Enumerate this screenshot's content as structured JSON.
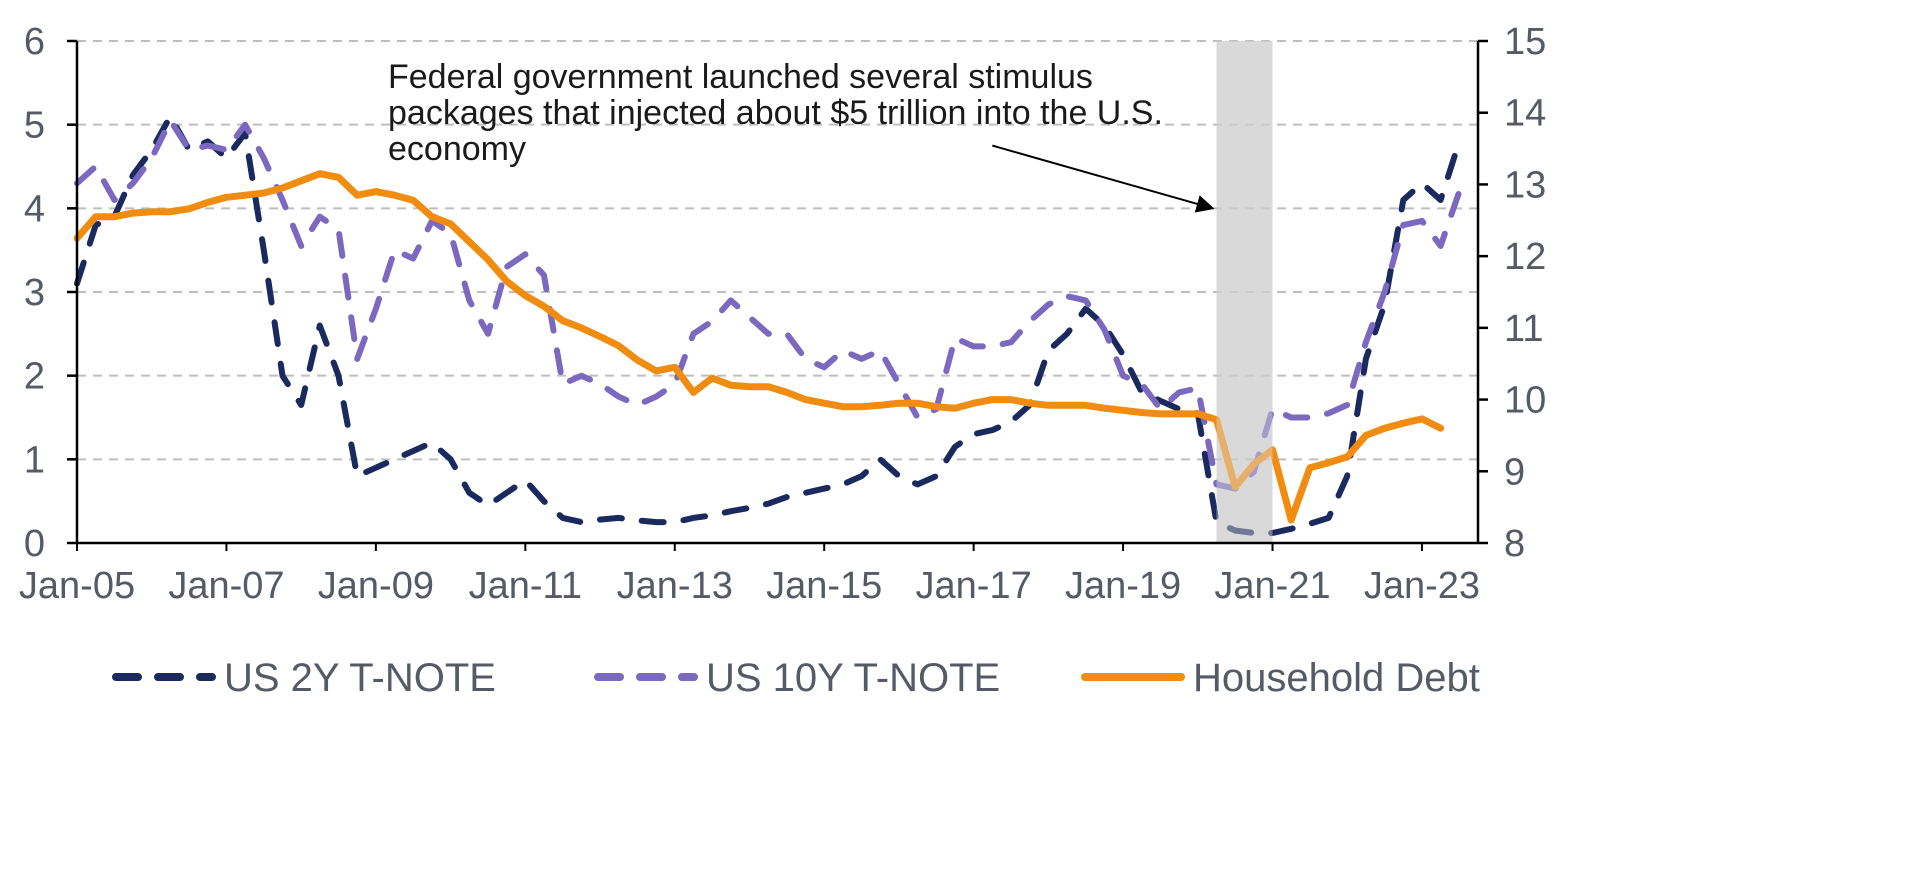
{
  "chart_data": {
    "type": "line",
    "title": "",
    "xlabel": "",
    "ylabel": "",
    "x_ticks": [
      "Jan-05",
      "Jan-07",
      "Jan-09",
      "Jan-11",
      "Jan-13",
      "Jan-15",
      "Jan-17",
      "Jan-19",
      "Jan-21",
      "Jan-23"
    ],
    "x_range": [
      2005.0,
      2023.75
    ],
    "y_left": {
      "range": [
        0,
        6
      ],
      "ticks": [
        "0",
        "1",
        "2",
        "3",
        "4",
        "5",
        "6"
      ]
    },
    "y_right": {
      "range": [
        8,
        15
      ],
      "ticks": [
        "8",
        "9",
        "10",
        "11",
        "12",
        "13",
        "14",
        "15"
      ]
    },
    "grid": "horizontal dashed",
    "legend_position": "bottom",
    "shaded_period": [
      2020.25,
      2021.0
    ],
    "annotation": {
      "lines": [
        "Federal government launched several stimulus",
        "packages that injected about $5 trillion into the U.S.",
        "economy"
      ],
      "arrow_from": [
        2017.25,
        4.75
      ],
      "arrow_to": [
        2020.2,
        4.0
      ]
    },
    "colors": {
      "us2y": "#1a2a5e",
      "us10y": "#7b68bf",
      "household": "#f08c10",
      "shade": "#d9d9d9",
      "grid": "#bfbfbf",
      "axis": "#000000"
    },
    "series": [
      {
        "name": "US 2Y T-NOTE",
        "axis": "left",
        "style": "dashed",
        "x": [
          2005.0,
          2005.25,
          2005.5,
          2005.75,
          2006.0,
          2006.25,
          2006.5,
          2006.75,
          2007.0,
          2007.25,
          2007.5,
          2007.75,
          2008.0,
          2008.25,
          2008.5,
          2008.75,
          2009.0,
          2009.25,
          2009.5,
          2009.75,
          2010.0,
          2010.25,
          2010.5,
          2010.75,
          2011.0,
          2011.25,
          2011.5,
          2011.75,
          2012.0,
          2012.25,
          2012.5,
          2012.75,
          2013.0,
          2013.25,
          2013.5,
          2013.75,
          2014.0,
          2014.25,
          2014.5,
          2014.75,
          2015.0,
          2015.25,
          2015.5,
          2015.75,
          2016.0,
          2016.25,
          2016.5,
          2016.75,
          2017.0,
          2017.25,
          2017.5,
          2017.75,
          2018.0,
          2018.25,
          2018.5,
          2018.75,
          2019.0,
          2019.25,
          2019.5,
          2019.75,
          2020.0,
          2020.25,
          2020.5,
          2020.75,
          2021.0,
          2021.25,
          2021.5,
          2021.75,
          2022.0,
          2022.25,
          2022.5,
          2022.75,
          2023.0,
          2023.25,
          2023.5
        ],
        "values": [
          3.1,
          3.8,
          3.9,
          4.4,
          4.7,
          5.1,
          4.7,
          4.8,
          4.6,
          4.9,
          3.5,
          2.0,
          1.65,
          2.6,
          2.0,
          0.8,
          0.9,
          1.0,
          1.1,
          1.2,
          1.0,
          0.6,
          0.45,
          0.6,
          0.75,
          0.5,
          0.3,
          0.25,
          0.28,
          0.3,
          0.27,
          0.25,
          0.25,
          0.3,
          0.33,
          0.38,
          0.42,
          0.47,
          0.55,
          0.6,
          0.65,
          0.7,
          0.8,
          1.0,
          0.8,
          0.7,
          0.8,
          1.15,
          1.3,
          1.35,
          1.45,
          1.65,
          2.3,
          2.5,
          2.8,
          2.6,
          2.25,
          1.8,
          1.7,
          1.6,
          1.55,
          0.25,
          0.15,
          0.12,
          0.12,
          0.17,
          0.23,
          0.3,
          0.8,
          2.2,
          2.85,
          4.1,
          4.3,
          4.1,
          4.8
        ]
      },
      {
        "name": "US 10Y T-NOTE",
        "axis": "left",
        "style": "dashed",
        "x": [
          2005.0,
          2005.25,
          2005.5,
          2005.75,
          2006.0,
          2006.25,
          2006.5,
          2006.75,
          2007.0,
          2007.25,
          2007.5,
          2007.75,
          2008.0,
          2008.25,
          2008.5,
          2008.75,
          2009.0,
          2009.25,
          2009.5,
          2009.75,
          2010.0,
          2010.25,
          2010.5,
          2010.75,
          2011.0,
          2011.25,
          2011.5,
          2011.75,
          2012.0,
          2012.25,
          2012.5,
          2012.75,
          2013.0,
          2013.25,
          2013.5,
          2013.75,
          2014.0,
          2014.25,
          2014.5,
          2014.75,
          2015.0,
          2015.25,
          2015.5,
          2015.75,
          2016.0,
          2016.25,
          2016.5,
          2016.75,
          2017.0,
          2017.25,
          2017.5,
          2017.75,
          2018.0,
          2018.25,
          2018.5,
          2018.75,
          2019.0,
          2019.25,
          2019.5,
          2019.75,
          2020.0,
          2020.25,
          2020.5,
          2020.75,
          2021.0,
          2021.25,
          2021.5,
          2021.75,
          2022.0,
          2022.25,
          2022.5,
          2022.75,
          2023.0,
          2023.25,
          2023.5
        ],
        "values": [
          4.3,
          4.5,
          4.1,
          4.3,
          4.6,
          5.05,
          4.7,
          4.75,
          4.7,
          5.0,
          4.6,
          4.1,
          3.55,
          3.9,
          3.75,
          2.2,
          2.8,
          3.5,
          3.4,
          3.85,
          3.7,
          2.9,
          2.5,
          3.3,
          3.45,
          3.2,
          1.9,
          2.0,
          1.9,
          1.75,
          1.65,
          1.75,
          1.9,
          2.5,
          2.65,
          2.9,
          2.7,
          2.5,
          2.5,
          2.2,
          2.1,
          2.3,
          2.2,
          2.3,
          1.9,
          1.5,
          1.6,
          2.45,
          2.35,
          2.35,
          2.4,
          2.65,
          2.85,
          2.95,
          2.9,
          2.55,
          2.0,
          1.9,
          1.6,
          1.8,
          1.85,
          0.7,
          0.65,
          0.85,
          1.6,
          1.5,
          1.5,
          1.55,
          1.65,
          2.4,
          3.0,
          3.8,
          3.85,
          3.55,
          4.2
        ]
      },
      {
        "name": "Household Debt",
        "axis": "right",
        "style": "solid",
        "x": [
          2005.0,
          2005.25,
          2005.5,
          2005.75,
          2006.0,
          2006.25,
          2006.5,
          2006.75,
          2007.0,
          2007.25,
          2007.5,
          2007.75,
          2008.0,
          2008.25,
          2008.5,
          2008.75,
          2009.0,
          2009.25,
          2009.5,
          2009.75,
          2010.0,
          2010.25,
          2010.5,
          2010.75,
          2011.0,
          2011.25,
          2011.5,
          2011.75,
          2012.0,
          2012.25,
          2012.5,
          2012.75,
          2013.0,
          2013.25,
          2013.5,
          2013.75,
          2014.0,
          2014.25,
          2014.5,
          2014.75,
          2015.0,
          2015.25,
          2015.5,
          2015.75,
          2016.0,
          2016.25,
          2016.5,
          2016.75,
          2017.0,
          2017.25,
          2017.5,
          2017.75,
          2018.0,
          2018.25,
          2018.5,
          2018.75,
          2019.0,
          2019.25,
          2019.5,
          2019.75,
          2020.0,
          2020.25,
          2020.5,
          2020.75,
          2021.0,
          2021.25,
          2021.5,
          2021.75,
          2022.0,
          2022.25,
          2022.5,
          2022.75,
          2023.0,
          2023.25
        ],
        "values": [
          12.25,
          12.55,
          12.55,
          12.6,
          12.62,
          12.62,
          12.66,
          12.75,
          12.82,
          12.85,
          12.88,
          12.95,
          13.05,
          13.15,
          13.1,
          12.85,
          12.9,
          12.85,
          12.78,
          12.55,
          12.45,
          12.2,
          11.95,
          11.65,
          11.45,
          11.3,
          11.1,
          11.0,
          10.88,
          10.75,
          10.55,
          10.4,
          10.45,
          10.1,
          10.3,
          10.2,
          10.18,
          10.18,
          10.1,
          10.0,
          9.95,
          9.9,
          9.9,
          9.92,
          9.95,
          9.95,
          9.9,
          9.88,
          9.95,
          10.0,
          10.0,
          9.95,
          9.92,
          9.92,
          9.92,
          9.88,
          9.85,
          9.82,
          9.8,
          9.8,
          9.8,
          9.72,
          8.78,
          9.1,
          9.3,
          8.32,
          9.05,
          9.12,
          9.2,
          9.5,
          9.6,
          9.67,
          9.73,
          9.6
        ]
      }
    ]
  },
  "legend": {
    "items": [
      {
        "key": "us2y",
        "label": "US 2Y T-NOTE"
      },
      {
        "key": "us10y",
        "label": "US 10Y T-NOTE"
      },
      {
        "key": "household",
        "label": "Household Debt"
      }
    ]
  }
}
